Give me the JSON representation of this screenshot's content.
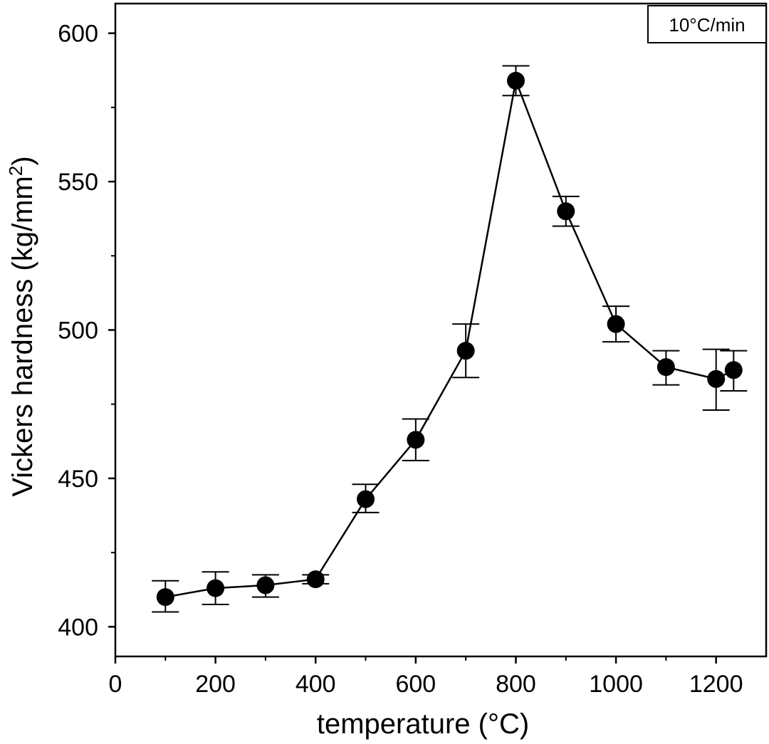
{
  "chart_data": {
    "type": "scatter",
    "annotation": "10°C/min",
    "xlabel": "temperature (°C)",
    "ylabel_main": "Vickers hardness (kg/mm",
    "ylabel_sup": "2",
    "ylabel_close": ")",
    "xlim": [
      0,
      1300
    ],
    "ylim": [
      390,
      610
    ],
    "x_ticks": [
      0,
      200,
      400,
      600,
      800,
      1000,
      1200
    ],
    "y_ticks": [
      400,
      450,
      500,
      550,
      600
    ],
    "series": [
      {
        "points": [
          {
            "x": 100,
            "y": 410,
            "err_low": 405,
            "err_high": 415.5
          },
          {
            "x": 200,
            "y": 413,
            "err_low": 407.5,
            "err_high": 418.5
          },
          {
            "x": 300,
            "y": 414,
            "err_low": 410,
            "err_high": 417.5
          },
          {
            "x": 400,
            "y": 416,
            "err_low": 414.5,
            "err_high": 417.5
          },
          {
            "x": 500,
            "y": 443,
            "err_low": 438.5,
            "err_high": 448
          },
          {
            "x": 600,
            "y": 463,
            "err_low": 456,
            "err_high": 470
          },
          {
            "x": 700,
            "y": 493,
            "err_low": 484,
            "err_high": 502
          },
          {
            "x": 800,
            "y": 584,
            "err_low": 579,
            "err_high": 589
          },
          {
            "x": 900,
            "y": 540,
            "err_low": 535,
            "err_high": 545
          },
          {
            "x": 1000,
            "y": 502,
            "err_low": 496,
            "err_high": 508
          },
          {
            "x": 1100,
            "y": 487.5,
            "err_low": 481.5,
            "err_high": 493
          },
          {
            "x": 1200,
            "y": 483.5,
            "err_low": 473,
            "err_high": 493.5
          },
          {
            "x": 1235,
            "y": 486.5,
            "err_low": 479.5,
            "err_high": 493
          }
        ]
      }
    ],
    "grid": false,
    "colors": {
      "marker": "#000000",
      "line": "#000000"
    }
  }
}
